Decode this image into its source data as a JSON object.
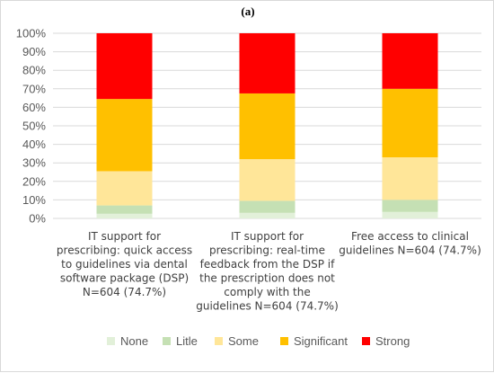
{
  "chart_data": {
    "type": "bar",
    "stacked": true,
    "title": "(a)",
    "categories": [
      [
        "IT support for",
        "prescribing: quick access",
        "to guidelines via dental",
        "software package (DSP)",
        "N=604 (74.7%)"
      ],
      [
        "IT support for",
        "prescribing: real-time",
        "feedback from the DSP if",
        "the prescription does not",
        "comply with the",
        "guidelines N=604 (74.7%)"
      ],
      [
        "Free access to clinical",
        "guidelines N=604 (74.7%)"
      ]
    ],
    "series": [
      {
        "name": "None",
        "color": "#e2f0d9",
        "values": [
          2.5,
          3,
          3.5
        ]
      },
      {
        "name": "Litle",
        "color": "#c5e0b4",
        "values": [
          4.5,
          6.5,
          6.5
        ]
      },
      {
        "name": "Some",
        "color": "#ffe699",
        "values": [
          18.5,
          22.5,
          23
        ]
      },
      {
        "name": "Significant",
        "color": "#ffc000",
        "values": [
          39,
          35.5,
          37
        ]
      },
      {
        "name": "Strong",
        "color": "#ff0000",
        "values": [
          35.5,
          32.5,
          30
        ]
      }
    ],
    "yticks": [
      "0%",
      "10%",
      "20%",
      "30%",
      "40%",
      "50%",
      "60%",
      "70%",
      "80%",
      "90%",
      "100%"
    ],
    "ylim": [
      0,
      100
    ],
    "grid": true,
    "legend_position": "bottom"
  }
}
